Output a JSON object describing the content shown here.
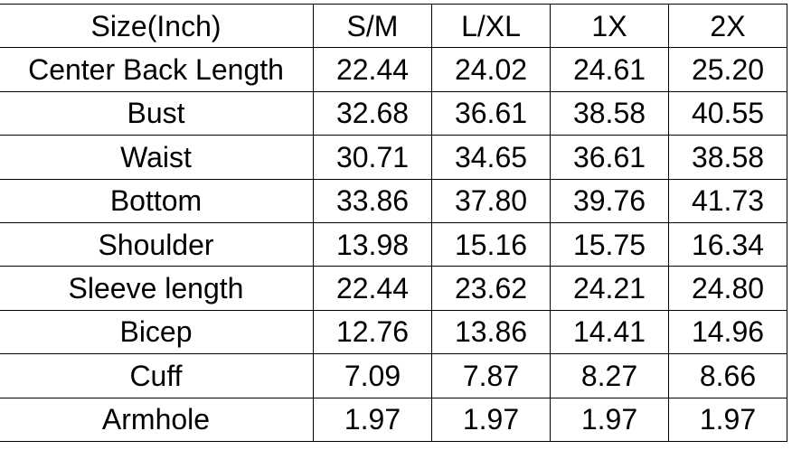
{
  "table": {
    "headers": [
      "Size(Inch)",
      "S/M",
      "L/XL",
      "1X",
      "2X"
    ],
    "rows": [
      [
        "Center Back Length",
        "22.44",
        "24.02",
        "24.61",
        "25.20"
      ],
      [
        "Bust",
        "32.68",
        "36.61",
        "38.58",
        "40.55"
      ],
      [
        "Waist",
        "30.71",
        "34.65",
        "36.61",
        "38.58"
      ],
      [
        "Bottom",
        "33.86",
        "37.80",
        "39.76",
        "41.73"
      ],
      [
        "Shoulder",
        "13.98",
        "15.16",
        "15.75",
        "16.34"
      ],
      [
        "Sleeve length",
        "22.44",
        "23.62",
        "24.21",
        "24.80"
      ],
      [
        "Bicep",
        "12.76",
        "13.86",
        "14.41",
        "14.96"
      ],
      [
        "Cuff",
        "7.09",
        "7.87",
        "8.27",
        "8.66"
      ],
      [
        "Armhole",
        "1.97",
        "1.97",
        "1.97",
        "1.97"
      ]
    ]
  }
}
